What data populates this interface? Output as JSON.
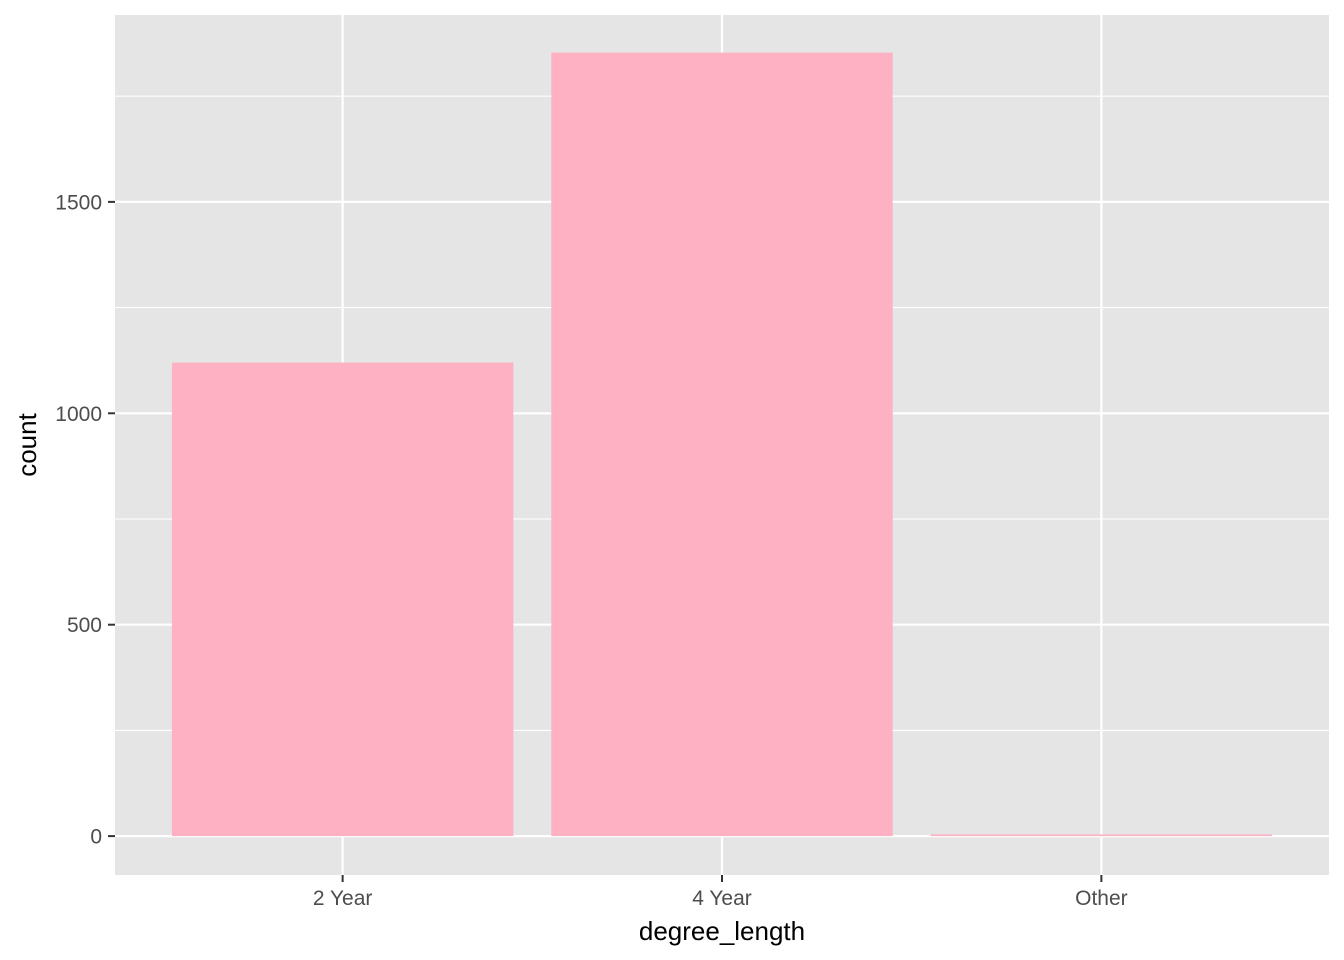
{
  "chart_data": {
    "type": "bar",
    "categories": [
      "2 Year",
      "4 Year",
      "Other"
    ],
    "values": [
      1120,
      1853,
      4
    ],
    "xlabel": "degree_length",
    "ylabel": "count",
    "ylim": [
      -92,
      1942
    ],
    "y_ticks": [
      0,
      500,
      1000,
      1500
    ],
    "y_tick_labels": [
      "0",
      "500",
      "1000",
      "1500"
    ],
    "grid": true,
    "colors": {
      "bar": "#fdb1c2",
      "panel": "#e5e5e5",
      "grid": "#ffffff",
      "tick": "#333333"
    }
  }
}
